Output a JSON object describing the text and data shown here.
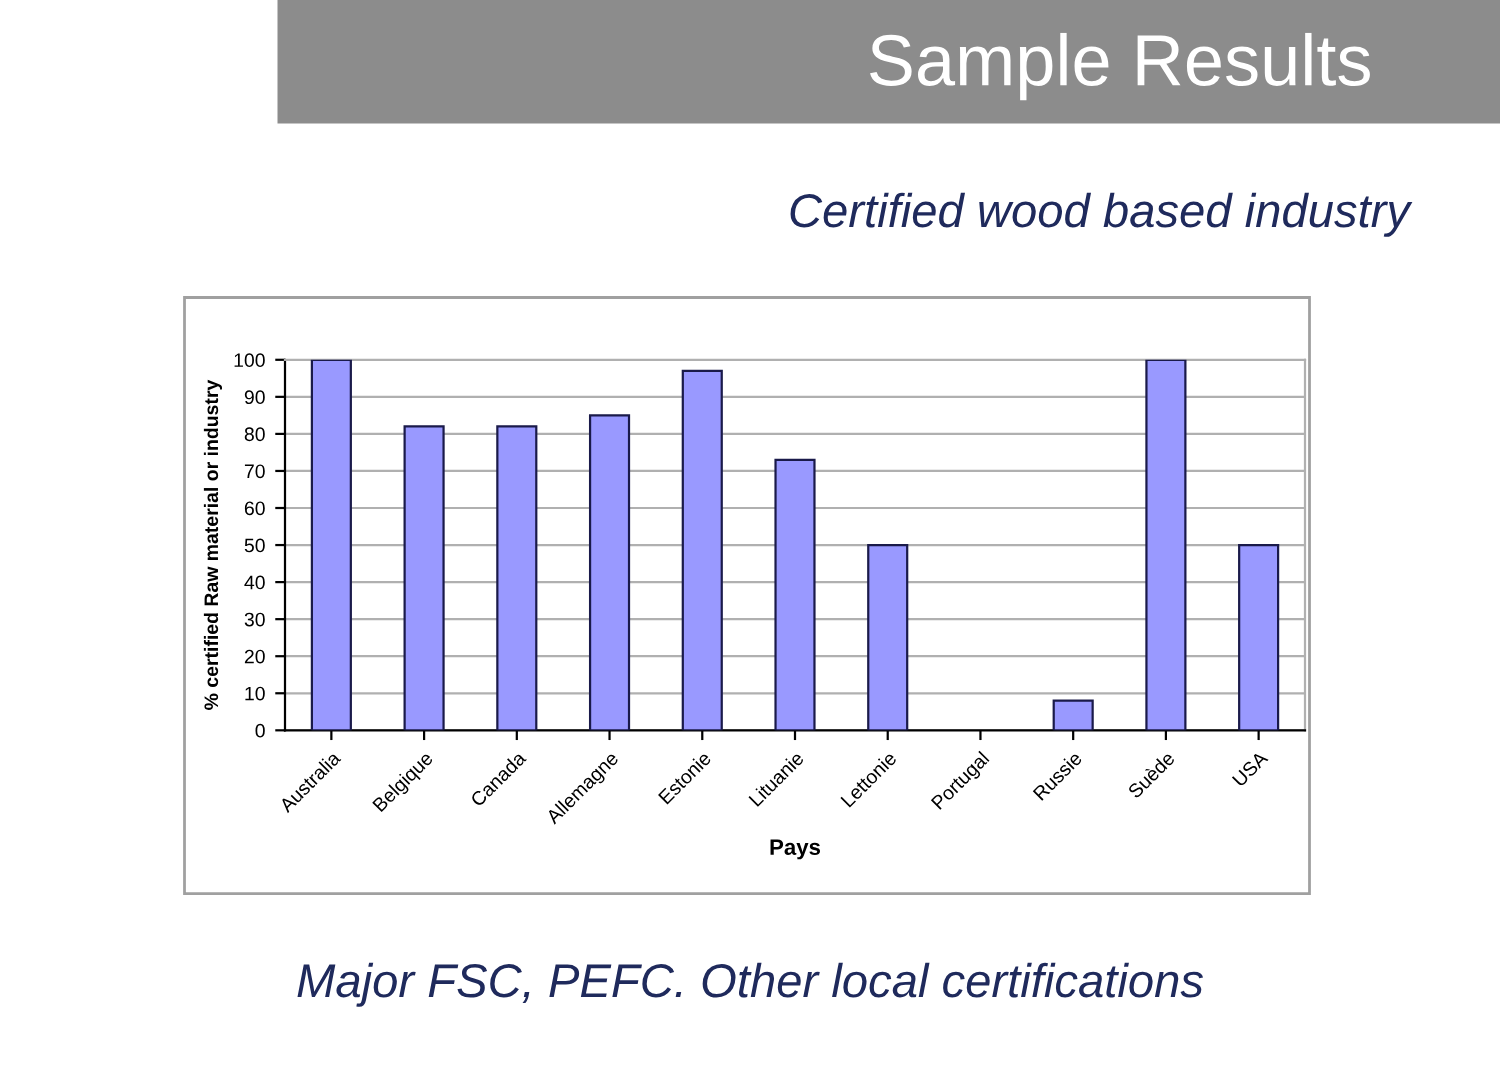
{
  "chart_data": {
    "type": "bar",
    "title": "Sample Results",
    "subtitle": "Certified wood based industry",
    "xlabel": "Pays",
    "ylabel": "% certified Raw material or industry",
    "categories": [
      "Australia",
      "Belgique",
      "Canada",
      "Allemagne",
      "Estonie",
      "Lituanie",
      "Lettonie",
      "Portugal",
      "Russie",
      "Suède",
      "USA"
    ],
    "values": [
      100,
      82,
      82,
      85,
      97,
      73,
      50,
      null,
      8,
      100,
      50
    ],
    "color": "#9999ff",
    "ylim": [
      0,
      100
    ],
    "yticks": [
      0,
      10,
      20,
      30,
      40,
      50,
      60,
      70,
      80,
      90,
      100
    ],
    "grid": "y",
    "annotations": [
      "Major FSC, PEFC. Other local certifications"
    ]
  }
}
